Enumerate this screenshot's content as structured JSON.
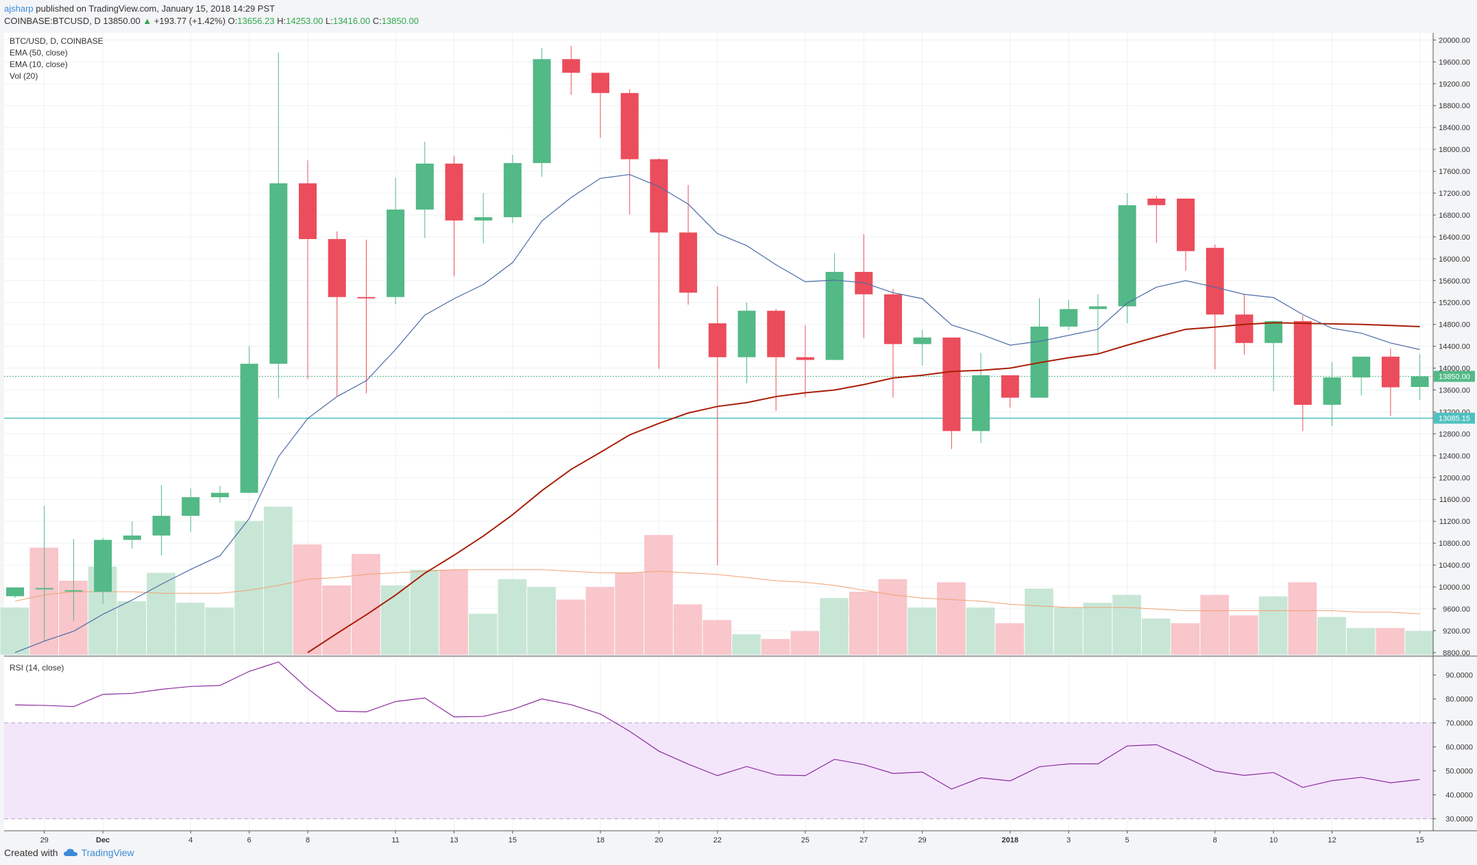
{
  "header": {
    "user": "ajsharp",
    "published": "published on TradingView.com, January 15, 2018 14:29 PST",
    "symbol": "COINBASE:BTCUSD, D",
    "last": "13850.00",
    "change": "+193.77 (+1.42%)",
    "o_label": "O:",
    "o": "13656.23",
    "h_label": "H:",
    "h": "14253.00",
    "l_label": "L:",
    "l": "13416.00",
    "c_label": "C:",
    "c": "13850.00"
  },
  "legend": {
    "title": "BTC/USD, D, COINBASE",
    "ema50": "EMA (50, close)",
    "ema10": "EMA (10, close)",
    "vol": "Vol (20)",
    "rsi": "RSI (14, close)"
  },
  "price_labels": {
    "last": "13850.00",
    "line": "13085.15"
  },
  "footer": {
    "created": "Created with",
    "brand": "TradingView"
  },
  "colors": {
    "up": "#53b987",
    "down": "#eb4d5c",
    "vol_up": "#c8e6d6",
    "vol_down": "#f8c6cb",
    "ema10": "#4a6aa5",
    "ema50": "#a91d05",
    "vol_ma": "#f0a070",
    "rsi": "#8a2a9e",
    "rsi_band": "#f3e6fb",
    "hline": "#4fc0c0"
  },
  "chart_data": {
    "type": "candlestick",
    "y_ticks": [
      8800,
      9200,
      9600,
      10000,
      10400,
      10800,
      11200,
      11600,
      12000,
      12400,
      12800,
      13200,
      13600,
      14000,
      14400,
      14800,
      15200,
      15600,
      16000,
      16400,
      16800,
      17200,
      17600,
      18000,
      18400,
      18800,
      19200,
      19600,
      20000
    ],
    "y_tick_labels": [
      "8800.00",
      "9200.00",
      "9600.00",
      "10000.00",
      "10400.00",
      "10800.00",
      "11200.00",
      "11600.00",
      "12000.00",
      "12400.00",
      "12800.00",
      "13200.00",
      "13600.00",
      "14000.00",
      "14400.00",
      "14800.00",
      "15200.00",
      "15600.00",
      "16000.00",
      "16400.00",
      "16800.00",
      "17200.00",
      "17600.00",
      "18000.00",
      "18400.00",
      "18800.00",
      "19200.00",
      "19600.00",
      "20000.00"
    ],
    "ylim": [
      8760,
      20130
    ],
    "rsi_ticks": [
      30,
      40,
      50,
      60,
      70,
      80,
      90
    ],
    "rsi_tick_labels": [
      "30.0000",
      "40.0000",
      "50.0000",
      "60.0000",
      "70.0000",
      "80.0000",
      "90.0000"
    ],
    "rsi_ylim": [
      25,
      97
    ],
    "rsi_band": [
      30,
      70
    ],
    "x_ticks": [
      {
        "i": 1,
        "label": "29"
      },
      {
        "i": 3,
        "label": "Dec"
      },
      {
        "i": 6,
        "label": "4"
      },
      {
        "i": 8,
        "label": "6"
      },
      {
        "i": 10,
        "label": "8"
      },
      {
        "i": 13,
        "label": "11"
      },
      {
        "i": 15,
        "label": "13"
      },
      {
        "i": 17,
        "label": "15"
      },
      {
        "i": 20,
        "label": "18"
      },
      {
        "i": 22,
        "label": "20"
      },
      {
        "i": 24,
        "label": "22"
      },
      {
        "i": 27,
        "label": "25"
      },
      {
        "i": 29,
        "label": "27"
      },
      {
        "i": 31,
        "label": "29"
      },
      {
        "i": 34,
        "label": "2018"
      },
      {
        "i": 36,
        "label": "3"
      },
      {
        "i": 38,
        "label": "5"
      },
      {
        "i": 41,
        "label": "8"
      },
      {
        "i": 43,
        "label": "10"
      },
      {
        "i": 45,
        "label": "12"
      },
      {
        "i": 48,
        "label": "15"
      }
    ],
    "candles": [
      {
        "o": 9830,
        "h": 9950,
        "l": 9800,
        "c": 9990
      },
      {
        "o": 9980,
        "h": 11480,
        "l": 9010,
        "c": 9980
      },
      {
        "o": 9940,
        "h": 10880,
        "l": 9370,
        "c": 9940
      },
      {
        "o": 9910,
        "h": 10900,
        "l": 9690,
        "c": 10860
      },
      {
        "o": 10860,
        "h": 11200,
        "l": 10700,
        "c": 10940
      },
      {
        "o": 10940,
        "h": 11860,
        "l": 10580,
        "c": 11300
      },
      {
        "o": 11300,
        "h": 11800,
        "l": 11000,
        "c": 11640
      },
      {
        "o": 11640,
        "h": 11850,
        "l": 11540,
        "c": 11720
      },
      {
        "o": 11720,
        "h": 14400,
        "l": 11720,
        "c": 14080
      },
      {
        "o": 14080,
        "h": 19770,
        "l": 13450,
        "c": 17380
      },
      {
        "o": 17380,
        "h": 17800,
        "l": 13800,
        "c": 16360
      },
      {
        "o": 16360,
        "h": 16500,
        "l": 13480,
        "c": 15300
      },
      {
        "o": 15300,
        "h": 16350,
        "l": 13540,
        "c": 15290
      },
      {
        "o": 15300,
        "h": 17480,
        "l": 15170,
        "c": 16900
      },
      {
        "o": 16900,
        "h": 18140,
        "l": 16380,
        "c": 17740
      },
      {
        "o": 17740,
        "h": 17880,
        "l": 15680,
        "c": 16700
      },
      {
        "o": 16700,
        "h": 17200,
        "l": 16280,
        "c": 16760
      },
      {
        "o": 16760,
        "h": 17900,
        "l": 16650,
        "c": 17750
      },
      {
        "o": 17750,
        "h": 19850,
        "l": 17500,
        "c": 19650
      },
      {
        "o": 19650,
        "h": 19890,
        "l": 19000,
        "c": 19400
      },
      {
        "o": 19400,
        "h": 19400,
        "l": 18210,
        "c": 19030
      },
      {
        "o": 19030,
        "h": 19100,
        "l": 16810,
        "c": 17820
      },
      {
        "o": 17820,
        "h": 17840,
        "l": 13990,
        "c": 16480
      },
      {
        "o": 16480,
        "h": 17350,
        "l": 15160,
        "c": 15380
      },
      {
        "o": 14820,
        "h": 15500,
        "l": 10400,
        "c": 14200
      },
      {
        "o": 14200,
        "h": 15200,
        "l": 13720,
        "c": 15050
      },
      {
        "o": 15050,
        "h": 15080,
        "l": 13220,
        "c": 14200
      },
      {
        "o": 14200,
        "h": 14780,
        "l": 13470,
        "c": 14150
      },
      {
        "o": 14150,
        "h": 16100,
        "l": 14150,
        "c": 15760
      },
      {
        "o": 15760,
        "h": 16450,
        "l": 14550,
        "c": 15350
      },
      {
        "o": 15350,
        "h": 15450,
        "l": 13460,
        "c": 14440
      },
      {
        "o": 14440,
        "h": 14700,
        "l": 14050,
        "c": 14560
      },
      {
        "o": 14560,
        "h": 14560,
        "l": 12520,
        "c": 12850
      },
      {
        "o": 12850,
        "h": 14280,
        "l": 12630,
        "c": 13870
      },
      {
        "o": 13870,
        "h": 13870,
        "l": 13280,
        "c": 13460
      },
      {
        "o": 13460,
        "h": 15280,
        "l": 13460,
        "c": 14760
      },
      {
        "o": 14760,
        "h": 15250,
        "l": 14700,
        "c": 15080
      },
      {
        "o": 15080,
        "h": 15350,
        "l": 14270,
        "c": 15130
      },
      {
        "o": 15130,
        "h": 17200,
        "l": 14820,
        "c": 16980
      },
      {
        "o": 17100,
        "h": 17150,
        "l": 16290,
        "c": 16980
      },
      {
        "o": 17100,
        "h": 17100,
        "l": 15780,
        "c": 16140
      },
      {
        "o": 16200,
        "h": 16260,
        "l": 13980,
        "c": 14980
      },
      {
        "o": 14980,
        "h": 15350,
        "l": 14250,
        "c": 14460
      },
      {
        "o": 14460,
        "h": 14870,
        "l": 13580,
        "c": 14860
      },
      {
        "o": 14860,
        "h": 14960,
        "l": 12850,
        "c": 13330
      },
      {
        "o": 13330,
        "h": 14110,
        "l": 12940,
        "c": 13830
      },
      {
        "o": 13830,
        "h": 14180,
        "l": 13500,
        "c": 14210
      },
      {
        "o": 14210,
        "h": 14360,
        "l": 13130,
        "c": 13650
      },
      {
        "o": 13656,
        "h": 14253,
        "l": 13416,
        "c": 13850
      }
    ],
    "ema10": [
      8800,
      9010,
      9190,
      9500,
      9760,
      10050,
      10320,
      10570,
      11250,
      12380,
      13080,
      13480,
      13770,
      14340,
      14970,
      15270,
      15530,
      15930,
      16690,
      17120,
      17470,
      17540,
      17320,
      17000,
      16460,
      16240,
      15890,
      15580,
      15610,
      15560,
      15380,
      15270,
      14790,
      14620,
      14420,
      14490,
      14600,
      14710,
      15190,
      15480,
      15600,
      15480,
      15350,
      15290,
      14980,
      14730,
      14640,
      14460,
      14340
    ],
    "ema50": [
      null,
      null,
      null,
      null,
      null,
      null,
      null,
      null,
      null,
      null,
      8800,
      9150,
      9490,
      9850,
      10250,
      10580,
      10930,
      11320,
      11760,
      12150,
      12460,
      12780,
      12990,
      13180,
      13300,
      13370,
      13480,
      13550,
      13600,
      13700,
      13820,
      13870,
      13940,
      13960,
      14000,
      14100,
      14190,
      14260,
      14420,
      14570,
      14710,
      14750,
      14800,
      14830,
      14820,
      14810,
      14800,
      14780,
      14760
    ],
    "volume_ticks_note": "",
    "volume": [
      0.3,
      0.68,
      0.47,
      0.56,
      0.34,
      0.52,
      0.33,
      0.3,
      0.85,
      0.94,
      0.7,
      0.44,
      0.64,
      0.44,
      0.54,
      0.54,
      0.26,
      0.48,
      0.43,
      0.35,
      0.43,
      0.52,
      0.76,
      0.32,
      0.22,
      0.13,
      0.1,
      0.15,
      0.36,
      0.4,
      0.48,
      0.3,
      0.46,
      0.3,
      0.2,
      0.42,
      0.3,
      0.33,
      0.38,
      0.23,
      0.2,
      0.38,
      0.25,
      0.37,
      0.46,
      0.24,
      0.17,
      0.17,
      0.15
    ],
    "volume_dir": [
      "u",
      "d",
      "d",
      "u",
      "u",
      "u",
      "u",
      "u",
      "u",
      "u",
      "d",
      "d",
      "d",
      "u",
      "u",
      "d",
      "u",
      "u",
      "u",
      "d",
      "d",
      "d",
      "d",
      "d",
      "d",
      "u",
      "d",
      "d",
      "u",
      "d",
      "d",
      "u",
      "d",
      "u",
      "d",
      "u",
      "u",
      "u",
      "u",
      "u",
      "d",
      "d",
      "d",
      "u",
      "d",
      "u",
      "u",
      "d",
      "u"
    ],
    "vol_ma": [
      0.34,
      0.38,
      0.4,
      0.4,
      0.4,
      0.39,
      0.39,
      0.39,
      0.41,
      0.44,
      0.48,
      0.49,
      0.51,
      0.52,
      0.53,
      0.54,
      0.54,
      0.54,
      0.54,
      0.53,
      0.52,
      0.52,
      0.53,
      0.52,
      0.51,
      0.49,
      0.47,
      0.46,
      0.44,
      0.41,
      0.38,
      0.36,
      0.35,
      0.34,
      0.32,
      0.31,
      0.3,
      0.3,
      0.3,
      0.29,
      0.28,
      0.28,
      0.28,
      0.28,
      0.28,
      0.28,
      0.27,
      0.27,
      0.26
    ],
    "rsi": [
      77.5,
      77.3,
      76.8,
      81.9,
      82.3,
      84.0,
      85.2,
      85.6,
      91.5,
      95.4,
      84.3,
      74.9,
      74.6,
      78.9,
      80.4,
      72.5,
      72.7,
      75.6,
      80.0,
      77.6,
      73.7,
      66.5,
      58.2,
      52.8,
      48.0,
      51.8,
      48.3,
      48.0,
      54.8,
      52.6,
      48.9,
      49.5,
      42.4,
      47.1,
      45.8,
      51.7,
      52.9,
      52.9,
      60.4,
      60.9,
      55.6,
      49.9,
      48.1,
      49.3,
      43.1,
      45.9,
      47.3,
      45.0,
      46.4
    ],
    "last_price": 13850,
    "hline_price": 13085.15
  }
}
